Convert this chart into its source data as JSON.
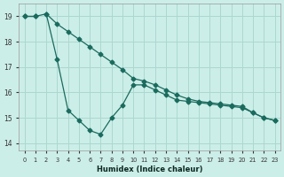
{
  "bg_color": "#cceee8",
  "grid_color": "#aad8d0",
  "line_color": "#1a6b5e",
  "xlabel": "Humidex (Indice chaleur)",
  "xlim": [
    -0.5,
    23.5
  ],
  "ylim": [
    13.7,
    19.5
  ],
  "yticks": [
    14,
    15,
    16,
    17,
    18,
    19
  ],
  "xticks": [
    0,
    1,
    2,
    3,
    4,
    5,
    6,
    7,
    8,
    9,
    10,
    11,
    12,
    13,
    14,
    15,
    16,
    17,
    18,
    19,
    20,
    21,
    22,
    23
  ],
  "line1_x": [
    0,
    1,
    2,
    3,
    4,
    5,
    6,
    7,
    8,
    9,
    10,
    11,
    12,
    13,
    14,
    15,
    16,
    17,
    18,
    19,
    20,
    21,
    22,
    23
  ],
  "line1_y": [
    19.0,
    19.0,
    19.1,
    18.7,
    18.4,
    18.1,
    17.8,
    17.5,
    17.2,
    16.9,
    16.55,
    16.45,
    16.3,
    16.1,
    15.9,
    15.75,
    15.65,
    15.6,
    15.55,
    15.5,
    15.45,
    15.2,
    15.0,
    14.9
  ],
  "line2_x": [
    2,
    3,
    4,
    5,
    6,
    7,
    8,
    9,
    10,
    11,
    12,
    13,
    14,
    15,
    16,
    17,
    18,
    19,
    20,
    21,
    22,
    23
  ],
  "line2_y": [
    19.1,
    17.3,
    15.3,
    14.9,
    14.5,
    14.35,
    15.0,
    15.5,
    16.3,
    16.3,
    16.1,
    15.9,
    15.7,
    15.65,
    15.6,
    15.55,
    15.5,
    15.45,
    15.4,
    15.2,
    15.0,
    14.9
  ],
  "line3_x": [
    0,
    1
  ],
  "line3_y": [
    19.0,
    19.0
  ]
}
